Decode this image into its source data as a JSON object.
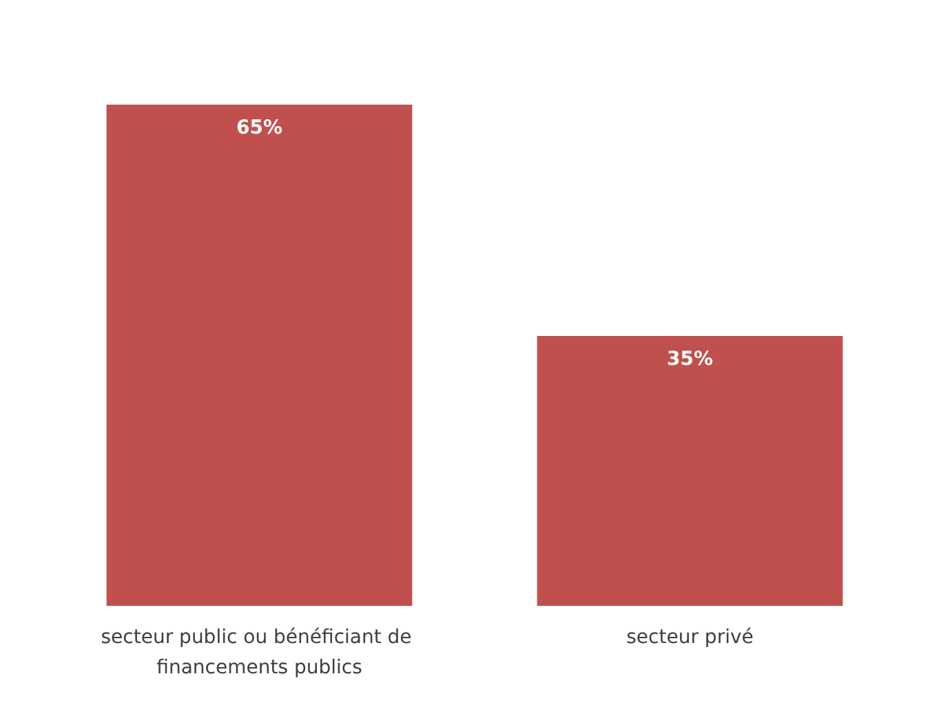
{
  "chart_data": {
    "type": "bar",
    "categories": [
      "secteur public ou bénéficiant de financements publics",
      "secteur privé"
    ],
    "values": [
      65,
      35
    ],
    "value_labels": [
      "65%",
      "35%"
    ],
    "color": "#c0504d"
  }
}
